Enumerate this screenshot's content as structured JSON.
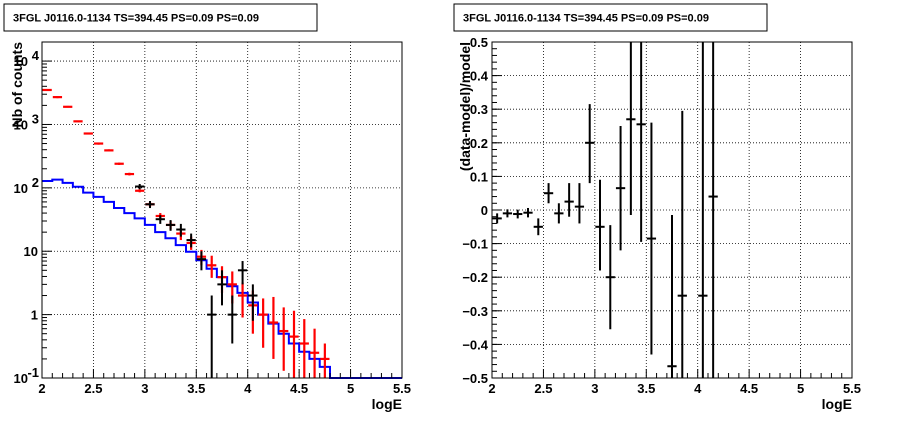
{
  "chart_data": [
    {
      "type": "histogram",
      "title": "3FGL J0116.0-1134 TS=394.45 PS=0.09 PS=0.09",
      "xlabel": "logE",
      "ylabel": "Nb of counts",
      "xlim": [
        2,
        5.5
      ],
      "ylim": [
        0.1,
        20000
      ],
      "yscale": "log",
      "grid": true,
      "x_ticks": [
        "2",
        "2.5",
        "3",
        "3.5",
        "4",
        "4.5",
        "5",
        "5.5"
      ],
      "y_ticks": [
        {
          "value": 0.1,
          "label": "10",
          "sup": "-1"
        },
        {
          "value": 1,
          "label": "1",
          "sup": ""
        },
        {
          "value": 10,
          "label": "10",
          "sup": ""
        },
        {
          "value": 100,
          "label": "10",
          "sup": "2"
        },
        {
          "value": 1000,
          "label": "10",
          "sup": "3"
        },
        {
          "value": 10000,
          "label": "10",
          "sup": "4"
        }
      ],
      "series": [
        {
          "role": "model-step",
          "color": "#0000ff",
          "bin_width": 0.1,
          "x": [
            2.05,
            2.15,
            2.25,
            2.35,
            2.45,
            2.55,
            2.65,
            2.75,
            2.85,
            2.95,
            3.05,
            3.15,
            3.25,
            3.35,
            3.45,
            3.55,
            3.65,
            3.75,
            3.85,
            3.95,
            4.05,
            4.15,
            4.25,
            4.35,
            4.45,
            4.55,
            4.65,
            4.75,
            4.85,
            4.95,
            5.05,
            5.15,
            5.25,
            5.35,
            5.45
          ],
          "y": [
            128,
            135,
            120,
            104,
            84,
            72,
            60,
            48,
            40,
            33,
            26,
            20,
            16,
            12.5,
            9.8,
            7.2,
            5.3,
            3.9,
            2.8,
            2.2,
            1.55,
            1.0,
            0.72,
            0.5,
            0.35,
            0.26,
            0.2,
            0.15,
            0.1,
            0.1,
            0.1,
            0.1,
            0.1,
            0.1,
            0.1
          ]
        },
        {
          "role": "total-points",
          "color": "#ff0000",
          "x": [
            2.05,
            2.15,
            2.25,
            2.35,
            2.45,
            2.55,
            2.65,
            2.75,
            2.85,
            2.95,
            3.05,
            3.15,
            3.25,
            3.35,
            3.45,
            3.55,
            3.65,
            3.75,
            3.85,
            3.95,
            4.05,
            4.15,
            4.25,
            4.35,
            4.45,
            4.55,
            4.65,
            4.75
          ],
          "y": [
            3500,
            2700,
            1900,
            1120,
            720,
            500,
            390,
            240,
            165,
            90,
            55,
            36,
            26,
            19,
            13.5,
            8.2,
            6.0,
            3.9,
            3.0,
            2.0,
            1.4,
            1.0,
            0.75,
            0.55,
            0.45,
            0.35,
            0.25,
            0.2
          ],
          "y_low": [
            3400,
            2600,
            1850,
            1090,
            700,
            480,
            375,
            230,
            157,
            85,
            50,
            32,
            22,
            15,
            10.5,
            6.0,
            3.8,
            2.2,
            1.5,
            0.9,
            0.5,
            0.3,
            0.2,
            0.13,
            0.1,
            0.1,
            0.1,
            0.1
          ],
          "y_high": [
            3600,
            2800,
            1960,
            1150,
            740,
            520,
            405,
            250,
            173,
            95,
            60,
            40,
            30,
            23,
            17,
            10.5,
            8.5,
            5.8,
            4.8,
            3.2,
            2.4,
            1.8,
            1.9,
            1.3,
            1.15,
            0.85,
            0.6,
            0.35
          ]
        },
        {
          "role": "data-points",
          "color": "#000000",
          "x": [
            2.95,
            3.05,
            3.15,
            3.25,
            3.35,
            3.45,
            3.55,
            3.65,
            3.75,
            3.85,
            3.95,
            4.05
          ],
          "y": [
            105,
            55,
            32,
            26,
            22,
            15,
            7.5,
            1.0,
            3.0,
            1.0,
            5.0,
            2.0
          ],
          "y_low": [
            95,
            48,
            27,
            21,
            17,
            11.5,
            5.0,
            0.1,
            1.4,
            0.35,
            3.0,
            0.8
          ],
          "y_high": [
            115,
            62,
            37,
            31,
            27,
            19,
            10,
            2.0,
            5.0,
            2.0,
            7.0,
            3.0
          ]
        }
      ]
    },
    {
      "type": "scatter",
      "title": "3FGL J0116.0-1134 TS=394.45 PS=0.09 PS=0.09",
      "xlabel": "logE",
      "ylabel": "(data-model)/model",
      "xlim": [
        2,
        5.5
      ],
      "ylim": [
        -0.5,
        0.5
      ],
      "grid": true,
      "x_ticks": [
        "2",
        "2.5",
        "3",
        "3.5",
        "4",
        "4.5",
        "5",
        "5.5"
      ],
      "y_ticks": [
        {
          "value": -0.5,
          "label": "−0.5"
        },
        {
          "value": -0.4,
          "label": "−0.4"
        },
        {
          "value": -0.3,
          "label": "−0.3"
        },
        {
          "value": -0.2,
          "label": "−0.2"
        },
        {
          "value": -0.1,
          "label": "−0.1"
        },
        {
          "value": 0,
          "label": "0"
        },
        {
          "value": 0.1,
          "label": "0.1"
        },
        {
          "value": 0.2,
          "label": "0.2"
        },
        {
          "value": 0.3,
          "label": "0.3"
        },
        {
          "value": 0.4,
          "label": "0.4"
        },
        {
          "value": 0.5,
          "label": "0.5"
        }
      ],
      "series": [
        {
          "role": "residuals",
          "color": "#000000",
          "x": [
            2.05,
            2.15,
            2.25,
            2.35,
            2.45,
            2.55,
            2.65,
            2.75,
            2.85,
            2.95,
            3.05,
            3.15,
            3.25,
            3.35,
            3.45,
            3.55,
            3.75,
            3.85,
            4.05,
            4.15
          ],
          "y": [
            -0.025,
            -0.01,
            -0.012,
            -0.008,
            -0.05,
            0.05,
            -0.01,
            0.025,
            0.01,
            0.2,
            -0.05,
            -0.2,
            0.065,
            0.27,
            0.255,
            -0.085,
            -0.465,
            -0.255,
            -0.255,
            0.04
          ],
          "y_low": [
            -0.04,
            -0.022,
            -0.025,
            -0.022,
            -0.075,
            0.02,
            -0.04,
            -0.02,
            -0.04,
            0.08,
            -0.18,
            -0.355,
            -0.12,
            -0.015,
            -0.095,
            -0.43,
            -0.5,
            -0.5,
            -0.5,
            -0.5
          ],
          "y_high": [
            -0.01,
            0.002,
            0.001,
            0.006,
            -0.025,
            0.08,
            0.02,
            0.08,
            0.08,
            0.315,
            0.09,
            -0.045,
            0.25,
            0.5,
            0.5,
            0.26,
            -0.015,
            0.295,
            0.5,
            0.5
          ]
        }
      ]
    }
  ]
}
